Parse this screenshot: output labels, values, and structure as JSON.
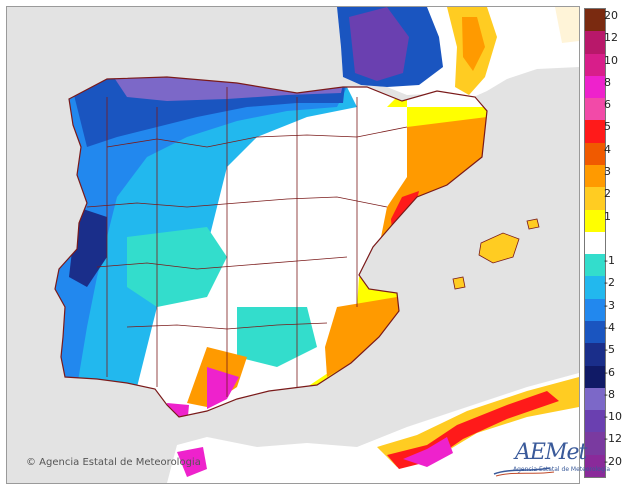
{
  "map": {
    "copyright": "© Agencia Estatal de Meteorologia",
    "logo_text": "AEMet",
    "logo_subtext": "Agencia Estatal de Meteorología",
    "colors": {
      "sea": "#e3e3e3",
      "border": "#7a1a1a"
    }
  },
  "legend": {
    "entries": [
      {
        "label": "20",
        "color": "#7a2a10"
      },
      {
        "label": "12",
        "color": "#b8186a"
      },
      {
        "label": "10",
        "color": "#d81e8a"
      },
      {
        "label": "8",
        "color": "#ee22cc"
      },
      {
        "label": "6",
        "color": "#f24aa8"
      },
      {
        "label": "5",
        "color": "#ff1a1a"
      },
      {
        "label": "4",
        "color": "#f05a00"
      },
      {
        "label": "3",
        "color": "#ff9a00"
      },
      {
        "label": "2",
        "color": "#ffcc22"
      },
      {
        "label": "1",
        "color": "#ffff00"
      },
      {
        "label": "",
        "color": "#ffffff"
      },
      {
        "label": "-1",
        "color": "#33ddcc"
      },
      {
        "label": "-2",
        "color": "#22b8ee"
      },
      {
        "label": "-3",
        "color": "#2288ee"
      },
      {
        "label": "-4",
        "color": "#1a55c0"
      },
      {
        "label": "-5",
        "color": "#1a2e8a"
      },
      {
        "label": "-6",
        "color": "#101a66"
      },
      {
        "label": "-8",
        "color": "#7c68c8"
      },
      {
        "label": "-10",
        "color": "#6a40b0"
      },
      {
        "label": "-12",
        "color": "#7a3aa0"
      },
      {
        "label": "-20",
        "color": "#8a2a9a"
      }
    ]
  }
}
